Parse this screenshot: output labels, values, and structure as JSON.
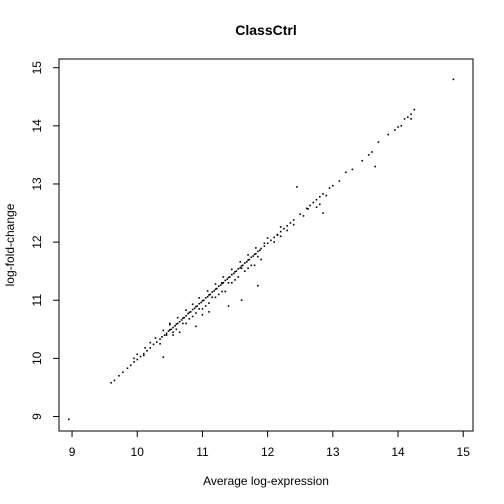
{
  "chart_data": {
    "type": "scatter",
    "title": "ClassCtrl",
    "xlabel": "Average log-expression",
    "ylabel": "log-fold-change",
    "xlim": [
      8.8,
      15.15
    ],
    "ylim": [
      8.75,
      15.15
    ],
    "x_ticks": [
      9,
      10,
      11,
      12,
      13,
      14,
      15
    ],
    "y_ticks": [
      9,
      10,
      11,
      12,
      13,
      14,
      15
    ],
    "x_tick_labels": [
      "9",
      "10",
      "11",
      "12",
      "13",
      "14",
      "15"
    ],
    "y_tick_labels": [
      "9",
      "10",
      "11",
      "12",
      "13",
      "14",
      "15"
    ],
    "grid": false,
    "legend": "none",
    "point_color": "#000000",
    "points": [
      [
        8.95,
        8.95
      ],
      [
        9.6,
        9.58
      ],
      [
        9.65,
        9.62
      ],
      [
        9.72,
        9.7
      ],
      [
        9.78,
        9.76
      ],
      [
        9.85,
        9.83
      ],
      [
        9.9,
        9.88
      ],
      [
        9.95,
        9.94
      ],
      [
        10.0,
        9.98
      ],
      [
        10.05,
        10.03
      ],
      [
        10.1,
        10.08
      ],
      [
        10.15,
        10.13
      ],
      [
        10.2,
        10.18
      ],
      [
        10.25,
        10.24
      ],
      [
        10.3,
        10.28
      ],
      [
        10.35,
        10.33
      ],
      [
        10.38,
        10.37
      ],
      [
        10.42,
        10.4
      ],
      [
        10.45,
        10.43
      ],
      [
        10.48,
        10.47
      ],
      [
        10.5,
        10.49
      ],
      [
        10.52,
        10.5
      ],
      [
        10.55,
        10.53
      ],
      [
        10.58,
        10.56
      ],
      [
        10.6,
        10.59
      ],
      [
        10.62,
        10.6
      ],
      [
        10.65,
        10.63
      ],
      [
        10.68,
        10.66
      ],
      [
        10.7,
        10.69
      ],
      [
        10.72,
        10.7
      ],
      [
        10.75,
        10.73
      ],
      [
        10.78,
        10.77
      ],
      [
        10.8,
        10.79
      ],
      [
        10.82,
        10.8
      ],
      [
        10.85,
        10.84
      ],
      [
        10.88,
        10.86
      ],
      [
        10.9,
        10.89
      ],
      [
        10.92,
        10.9
      ],
      [
        10.95,
        10.94
      ],
      [
        10.98,
        10.96
      ],
      [
        11.0,
        10.99
      ],
      [
        11.02,
        11.0
      ],
      [
        11.05,
        11.04
      ],
      [
        11.08,
        11.06
      ],
      [
        11.1,
        11.09
      ],
      [
        11.12,
        11.1
      ],
      [
        11.15,
        11.14
      ],
      [
        11.18,
        11.16
      ],
      [
        11.2,
        11.19
      ],
      [
        11.22,
        11.2
      ],
      [
        11.25,
        11.24
      ],
      [
        11.28,
        11.26
      ],
      [
        11.3,
        11.29
      ],
      [
        11.32,
        11.3
      ],
      [
        11.35,
        11.34
      ],
      [
        11.38,
        11.36
      ],
      [
        11.4,
        11.39
      ],
      [
        11.42,
        11.4
      ],
      [
        11.45,
        11.44
      ],
      [
        11.48,
        11.46
      ],
      [
        11.5,
        11.49
      ],
      [
        11.52,
        11.5
      ],
      [
        11.55,
        11.54
      ],
      [
        11.58,
        11.56
      ],
      [
        11.6,
        11.59
      ],
      [
        11.62,
        11.6
      ],
      [
        11.65,
        11.64
      ],
      [
        11.68,
        11.66
      ],
      [
        11.7,
        11.69
      ],
      [
        11.72,
        11.7
      ],
      [
        11.75,
        11.74
      ],
      [
        11.78,
        11.76
      ],
      [
        11.8,
        11.79
      ],
      [
        11.82,
        11.8
      ],
      [
        11.85,
        11.84
      ],
      [
        11.88,
        11.86
      ],
      [
        11.9,
        11.89
      ],
      [
        11.95,
        11.93
      ],
      [
        12.0,
        11.98
      ],
      [
        12.05,
        12.03
      ],
      [
        12.1,
        12.08
      ],
      [
        12.15,
        12.13
      ],
      [
        12.2,
        12.18
      ],
      [
        12.25,
        12.23
      ],
      [
        12.3,
        12.28
      ],
      [
        12.35,
        12.33
      ],
      [
        12.4,
        12.38
      ],
      [
        12.5,
        12.48
      ],
      [
        12.6,
        12.58
      ],
      [
        12.65,
        12.63
      ],
      [
        12.7,
        12.68
      ],
      [
        12.75,
        12.73
      ],
      [
        12.8,
        12.78
      ],
      [
        12.85,
        12.83
      ],
      [
        12.95,
        12.93
      ],
      [
        13.0,
        12.97
      ],
      [
        13.2,
        13.2
      ],
      [
        13.3,
        13.25
      ],
      [
        13.45,
        13.4
      ],
      [
        13.55,
        13.5
      ],
      [
        13.6,
        13.55
      ],
      [
        13.85,
        13.85
      ],
      [
        13.95,
        13.93
      ],
      [
        14.0,
        13.98
      ],
      [
        14.1,
        14.12
      ],
      [
        14.15,
        14.15
      ],
      [
        14.2,
        14.2
      ],
      [
        14.25,
        14.28
      ],
      [
        14.85,
        14.8
      ],
      [
        10.1,
        10.05
      ],
      [
        10.35,
        10.25
      ],
      [
        10.45,
        10.4
      ],
      [
        10.55,
        10.45
      ],
      [
        10.6,
        10.5
      ],
      [
        10.7,
        10.6
      ],
      [
        10.75,
        10.6
      ],
      [
        10.85,
        10.72
      ],
      [
        10.9,
        10.78
      ],
      [
        10.95,
        10.85
      ],
      [
        11.0,
        10.85
      ],
      [
        11.05,
        10.9
      ],
      [
        11.1,
        10.95
      ],
      [
        11.15,
        11.05
      ],
      [
        11.2,
        11.05
      ],
      [
        11.25,
        11.1
      ],
      [
        11.3,
        11.15
      ],
      [
        11.35,
        11.15
      ],
      [
        11.4,
        11.3
      ],
      [
        11.45,
        11.3
      ],
      [
        11.5,
        11.35
      ],
      [
        11.55,
        11.4
      ],
      [
        11.65,
        11.5
      ],
      [
        11.7,
        11.55
      ],
      [
        11.75,
        11.6
      ],
      [
        11.8,
        11.6
      ],
      [
        11.85,
        11.75
      ],
      [
        12.1,
        12.0
      ],
      [
        12.2,
        12.1
      ],
      [
        12.3,
        12.2
      ],
      [
        12.4,
        12.3
      ],
      [
        12.55,
        12.45
      ],
      [
        12.75,
        12.6
      ],
      [
        12.8,
        12.65
      ],
      [
        12.9,
        12.8
      ],
      [
        9.95,
        10.0
      ],
      [
        10.0,
        10.07
      ],
      [
        10.12,
        10.18
      ],
      [
        10.2,
        10.27
      ],
      [
        10.28,
        10.35
      ],
      [
        10.4,
        10.48
      ],
      [
        10.5,
        10.58
      ],
      [
        10.62,
        10.7
      ],
      [
        10.75,
        10.83
      ],
      [
        10.85,
        10.93
      ],
      [
        10.95,
        11.04
      ],
      [
        11.08,
        11.16
      ],
      [
        11.2,
        11.28
      ],
      [
        11.32,
        11.4
      ],
      [
        11.45,
        11.53
      ],
      [
        11.58,
        11.66
      ],
      [
        11.7,
        11.78
      ],
      [
        11.82,
        11.9
      ],
      [
        12.0,
        12.07
      ],
      [
        12.2,
        12.26
      ],
      [
        10.4,
        10.02
      ],
      [
        10.65,
        10.45
      ],
      [
        10.9,
        10.55
      ],
      [
        11.0,
        10.75
      ],
      [
        11.4,
        10.9
      ],
      [
        11.6,
        11.0
      ],
      [
        11.85,
        11.25
      ],
      [
        11.9,
        11.7
      ],
      [
        12.45,
        12.95
      ],
      [
        13.65,
        13.3
      ],
      [
        12.85,
        12.5
      ],
      [
        14.2,
        14.12
      ],
      [
        10.5,
        10.6
      ],
      [
        10.55,
        10.4
      ],
      [
        10.8,
        10.68
      ],
      [
        11.1,
        10.8
      ],
      [
        11.3,
        11.3
      ],
      [
        11.6,
        11.55
      ],
      [
        11.95,
        11.98
      ],
      [
        12.15,
        12.12
      ],
      [
        12.62,
        12.57
      ],
      [
        13.1,
        13.05
      ],
      [
        13.7,
        13.72
      ],
      [
        14.05,
        14.0
      ]
    ]
  }
}
